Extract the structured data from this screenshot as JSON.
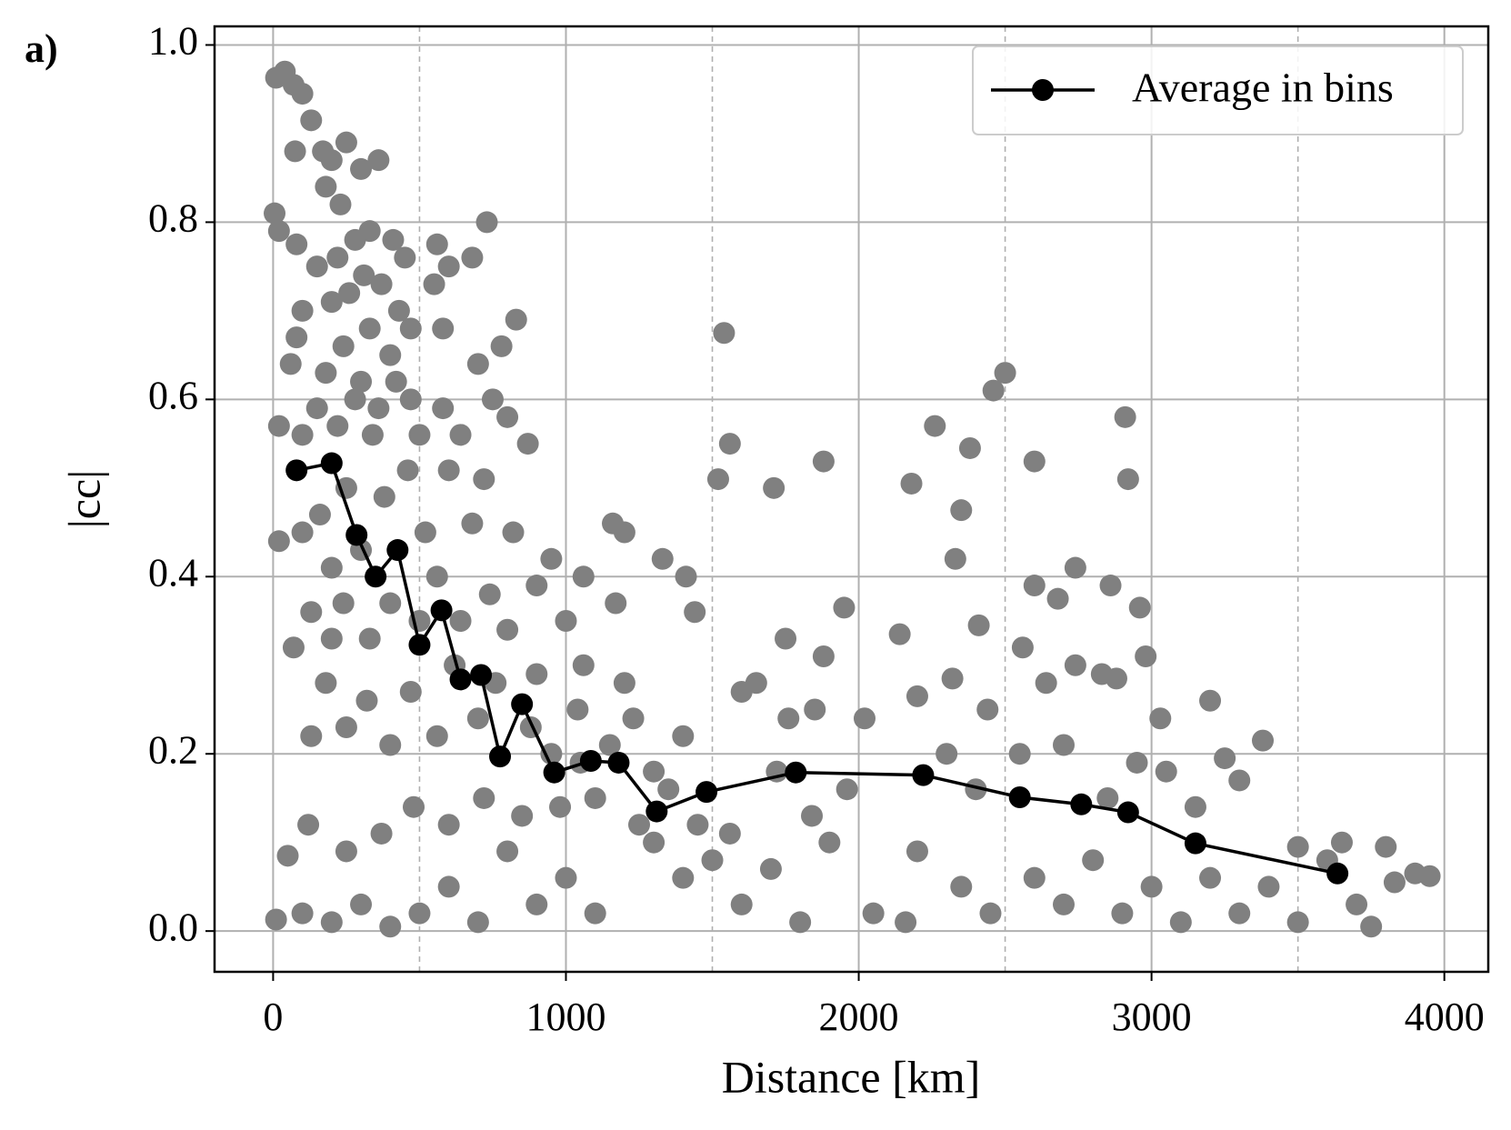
{
  "chart_data": {
    "type": "scatter",
    "panel_label": "a)",
    "x_label": "Distance [km]",
    "y_label": "|cc|",
    "xlim": [
      -200,
      4150
    ],
    "ylim": [
      -0.046,
      1.021
    ],
    "xticks": [
      0,
      1000,
      2000,
      3000,
      4000
    ],
    "xticks_minor": [
      500,
      1500,
      2500,
      3500
    ],
    "yticks": [
      {
        "value": 0,
        "label": "0.0"
      },
      {
        "value": 0.2,
        "label": "0.2"
      },
      {
        "value": 0.4,
        "label": "0.4"
      },
      {
        "value": 0.6,
        "label": "0.6"
      },
      {
        "value": 0.8,
        "label": "0.8"
      },
      {
        "value": 1,
        "label": "1.0"
      }
    ],
    "grid": true,
    "legend": "upper right",
    "scatter": {
      "color": "#808080",
      "x": [
        10,
        40,
        70,
        100,
        130,
        170,
        75,
        200,
        250,
        300,
        360,
        5,
        20,
        80,
        180,
        230,
        280,
        330,
        410,
        450,
        150,
        220,
        260,
        310,
        370,
        100,
        200,
        430,
        550,
        600,
        680,
        730,
        560,
        80,
        240,
        330,
        400,
        470,
        580,
        830,
        60,
        180,
        300,
        420,
        700,
        780,
        150,
        280,
        360,
        470,
        580,
        750,
        20,
        100,
        220,
        340,
        500,
        640,
        800,
        100,
        20,
        160,
        250,
        380,
        460,
        600,
        720,
        870,
        200,
        300,
        520,
        680,
        820,
        950,
        130,
        240,
        400,
        560,
        740,
        900,
        1060,
        70,
        200,
        330,
        500,
        640,
        800,
        1000,
        1170,
        180,
        320,
        470,
        620,
        760,
        900,
        1060,
        1200,
        130,
        250,
        400,
        560,
        700,
        880,
        1040,
        1230,
        1400,
        1160,
        1200,
        1540,
        1560,
        1520,
        1710,
        1880,
        1330,
        1410,
        1440,
        1950,
        2140,
        2180,
        2260,
        2330,
        2350,
        2380,
        2410,
        2460,
        2500,
        2600,
        2600,
        2680,
        2740,
        2860,
        2910,
        2920,
        2960,
        2980,
        3030,
        3200,
        3380,
        1600,
        1750,
        1880,
        2020,
        2200,
        2320,
        2440,
        2560,
        2640,
        2740,
        2830,
        2880,
        1300,
        1400,
        1500,
        1600,
        1700,
        1800,
        1900,
        2050,
        2160,
        2200,
        2350,
        2450,
        2600,
        2700,
        2800,
        2900,
        3000,
        3100,
        3200,
        3300,
        3400,
        3500,
        3600,
        3700,
        3750,
        3800,
        3830,
        3900,
        3950,
        3650,
        3500,
        3300,
        3250,
        3150,
        3050,
        2950,
        2850,
        2700,
        2550,
        2400,
        2300,
        1100,
        1000,
        900,
        800,
        700,
        600,
        500,
        400,
        300,
        200,
        100,
        10,
        50,
        120,
        250,
        370,
        480,
        600,
        720,
        850,
        980,
        1100,
        1250,
        1350,
        1450,
        1560,
        1720,
        1840,
        1960,
        1050,
        950,
        1150,
        1300,
        1650,
        1760,
        1850
      ],
      "y": [
        0.963,
        0.97,
        0.955,
        0.945,
        0.915,
        0.88,
        0.88,
        0.87,
        0.89,
        0.86,
        0.87,
        0.81,
        0.79,
        0.775,
        0.84,
        0.82,
        0.78,
        0.79,
        0.78,
        0.76,
        0.75,
        0.76,
        0.72,
        0.74,
        0.73,
        0.7,
        0.71,
        0.7,
        0.73,
        0.75,
        0.76,
        0.8,
        0.775,
        0.67,
        0.66,
        0.68,
        0.65,
        0.68,
        0.68,
        0.69,
        0.64,
        0.63,
        0.62,
        0.62,
        0.64,
        0.66,
        0.59,
        0.6,
        0.59,
        0.6,
        0.59,
        0.6,
        0.57,
        0.56,
        0.57,
        0.56,
        0.56,
        0.56,
        0.58,
        0.45,
        0.44,
        0.47,
        0.5,
        0.49,
        0.52,
        0.52,
        0.51,
        0.55,
        0.41,
        0.43,
        0.45,
        0.46,
        0.45,
        0.42,
        0.36,
        0.37,
        0.37,
        0.4,
        0.38,
        0.39,
        0.4,
        0.32,
        0.33,
        0.33,
        0.35,
        0.35,
        0.34,
        0.35,
        0.37,
        0.28,
        0.26,
        0.27,
        0.3,
        0.28,
        0.29,
        0.3,
        0.28,
        0.22,
        0.23,
        0.21,
        0.22,
        0.24,
        0.23,
        0.25,
        0.24,
        0.22,
        0.46,
        0.45,
        0.675,
        0.55,
        0.51,
        0.5,
        0.53,
        0.42,
        0.4,
        0.36,
        0.365,
        0.335,
        0.505,
        0.57,
        0.42,
        0.475,
        0.545,
        0.345,
        0.61,
        0.63,
        0.53,
        0.39,
        0.375,
        0.41,
        0.39,
        0.58,
        0.51,
        0.365,
        0.31,
        0.24,
        0.26,
        0.215,
        0.27,
        0.33,
        0.31,
        0.24,
        0.265,
        0.285,
        0.25,
        0.32,
        0.28,
        0.3,
        0.29,
        0.285,
        0.1,
        0.06,
        0.08,
        0.03,
        0.07,
        0.01,
        0.1,
        0.02,
        0.01,
        0.09,
        0.05,
        0.02,
        0.06,
        0.03,
        0.08,
        0.02,
        0.05,
        0.01,
        0.06,
        0.02,
        0.05,
        0.01,
        0.08,
        0.03,
        0.005,
        0.095,
        0.055,
        0.065,
        0.062,
        0.1,
        0.095,
        0.17,
        0.195,
        0.14,
        0.18,
        0.19,
        0.15,
        0.21,
        0.2,
        0.16,
        0.2,
        0.02,
        0.06,
        0.03,
        0.09,
        0.01,
        0.05,
        0.02,
        0.005,
        0.03,
        0.01,
        0.02,
        0.013,
        0.085,
        0.12,
        0.09,
        0.11,
        0.14,
        0.12,
        0.15,
        0.13,
        0.14,
        0.15,
        0.12,
        0.16,
        0.12,
        0.11,
        0.18,
        0.13,
        0.16,
        0.19,
        0.2,
        0.21,
        0.18,
        0.28,
        0.24,
        0.25
      ]
    },
    "series": [
      {
        "name": "Average in bins",
        "color": "#000000",
        "x": [
          80,
          200,
          285,
          350,
          425,
          500,
          575,
          640,
          710,
          775,
          850,
          960,
          1085,
          1180,
          1310,
          1480,
          1785,
          2220,
          2550,
          2760,
          2920,
          3150,
          3635
        ],
        "values": [
          0.52,
          0.528,
          0.447,
          0.4,
          0.43,
          0.323,
          0.362,
          0.284,
          0.289,
          0.197,
          0.256,
          0.179,
          0.192,
          0.19,
          0.135,
          0.157,
          0.179,
          0.176,
          0.151,
          0.143,
          0.134,
          0.099,
          0.065
        ]
      }
    ]
  }
}
